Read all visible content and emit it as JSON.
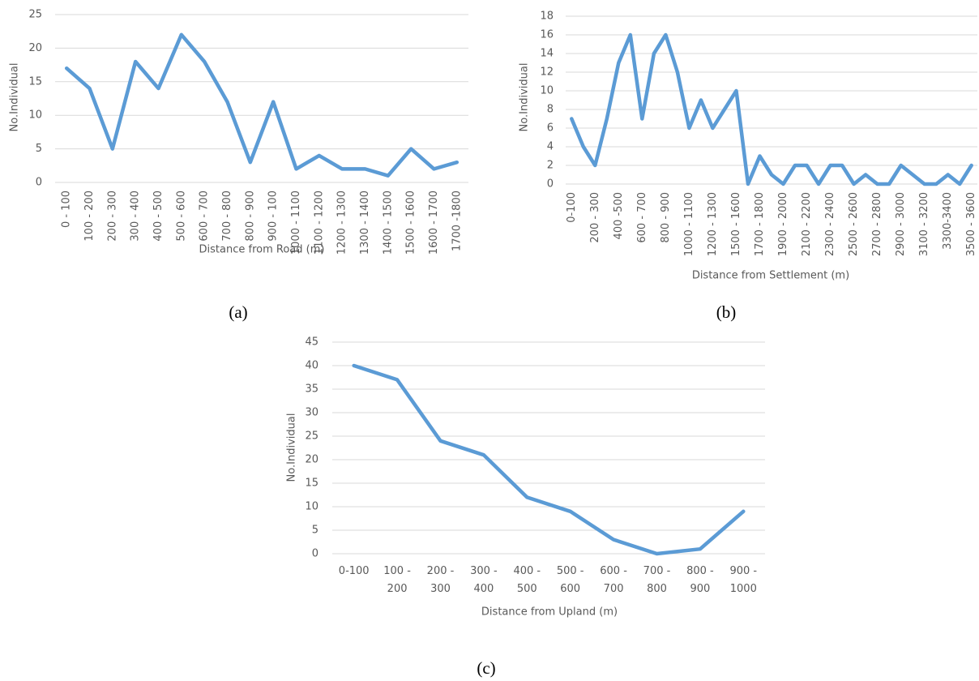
{
  "chart_data": [
    {
      "type": "line",
      "caption": "(a)",
      "ylabel": "No.Individual",
      "xlabel": "Distance from Road  (m)",
      "categories": [
        "0 - 100",
        "100 - 200",
        "200 - 300",
        "300 - 400",
        "400 - 500",
        "500 - 600",
        "600 - 700",
        "700 - 800",
        "800 - 900",
        "900 - 100",
        "1000 - 1100",
        "1100 - 1200",
        "1200 - 1300",
        "1300 - 1400",
        "1400 - 1500",
        "1500 - 1600",
        "1600 - 1700",
        "1700 -1800"
      ],
      "values": [
        17,
        14,
        5,
        18,
        14,
        22,
        18,
        12,
        3,
        12,
        2,
        4,
        2,
        2,
        1,
        5,
        2,
        3
      ],
      "color": "#5b9bd5",
      "ylim": [
        0,
        25
      ],
      "yticks": [
        0,
        5,
        10,
        15,
        20,
        25
      ],
      "grid": true
    },
    {
      "type": "line",
      "caption": "(b)",
      "ylabel": "No.Individual",
      "xlabel": "Distance from Settlement (m)",
      "categories": [
        "0-100",
        null,
        "200 - 300",
        null,
        "400 -500",
        null,
        "600 - 700",
        null,
        "800 - 900",
        null,
        "1000 - 1100",
        null,
        "1200 - 1300",
        null,
        "1500 - 1600",
        null,
        "1700 - 1800",
        null,
        "1900 - 2000",
        null,
        "2100 - 2200",
        null,
        "2300 - 2400",
        null,
        "2500 - 2600",
        null,
        "2700 - 2800",
        null,
        "2900 - 3000",
        null,
        "3100 - 3200",
        null,
        "3300-3400",
        null,
        "3500 - 3600"
      ],
      "values": [
        7,
        4,
        2,
        7,
        13,
        16,
        7,
        14,
        16,
        12,
        6,
        9,
        6,
        8,
        10,
        0,
        3,
        1,
        0,
        2,
        2,
        0,
        2,
        2,
        0,
        1,
        0,
        0,
        2,
        1,
        0,
        0,
        1,
        0,
        2
      ],
      "color": "#5b9bd5",
      "ylim": [
        0,
        18
      ],
      "yticks": [
        0,
        2,
        4,
        6,
        8,
        10,
        12,
        14,
        16,
        18
      ],
      "grid": true
    },
    {
      "type": "line",
      "caption": "(c)",
      "ylabel": "No.Individual",
      "xlabel": "Distance from Upland (m)",
      "categories": [
        "0-100",
        "100 - 200",
        "200 - 300",
        "300 - 400",
        "400 - 500",
        "500 - 600",
        "600 - 700",
        "700 - 800",
        "800 - 900",
        "900 - 1000"
      ],
      "values": [
        40,
        37,
        24,
        21,
        12,
        9,
        3,
        0,
        1,
        9
      ],
      "color": "#5b9bd5",
      "ylim": [
        0,
        45
      ],
      "yticks": [
        0,
        5,
        10,
        15,
        20,
        25,
        30,
        35,
        40,
        45
      ],
      "grid": true
    }
  ]
}
